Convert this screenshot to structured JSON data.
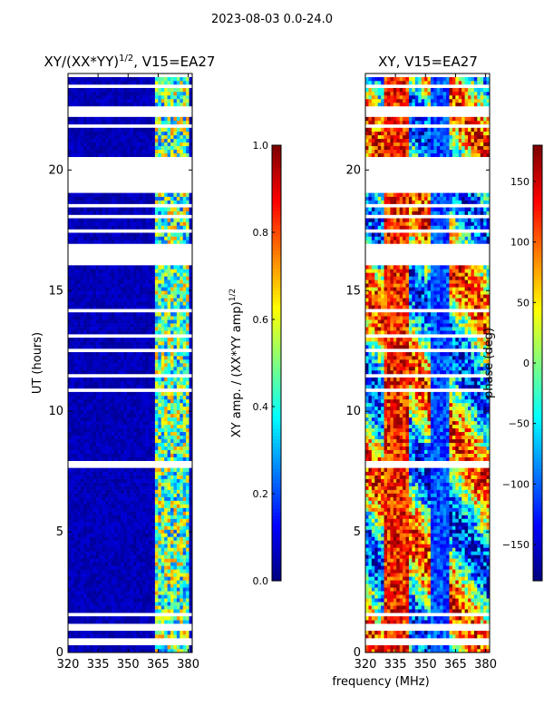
{
  "suptitle": "2023-08-03 0.0-24.0",
  "chart_data": [
    {
      "type": "heatmap",
      "title": "XY/(XX*YY)",
      "title_exp": "1/2",
      "title_suffix": ", V15=EA27",
      "xlabel": "",
      "ylabel": "UT (hours)",
      "xlim": [
        320,
        382
      ],
      "ylim": [
        0,
        24
      ],
      "xticks": [
        "320",
        "335",
        "350",
        "365",
        "380"
      ],
      "yticks": [
        "0",
        "5",
        "10",
        "15",
        "20"
      ],
      "colorbar": {
        "label": "XY amp. / (XX*YY amp)",
        "label_exp": "1/2",
        "range": [
          0.0,
          1.0
        ],
        "ticks": [
          "0.0",
          "0.2",
          "0.4",
          "0.6",
          "0.8",
          "1.0"
        ],
        "colormap": "jet"
      },
      "flagged_ut_ranges": [
        [
          0.95,
          1.25
        ],
        [
          16.0,
          17.0
        ],
        [
          19.1,
          20.6
        ],
        [
          22.2,
          22.7
        ],
        [
          23.4,
          23.5
        ]
      ],
      "signal_band_mhz": [
        363,
        380
      ]
    },
    {
      "type": "heatmap",
      "title": "XY, V15=EA27",
      "xlabel": "frequency (MHz)",
      "ylabel": "",
      "xlim": [
        320,
        382
      ],
      "ylim": [
        0,
        24
      ],
      "xticks": [
        "320",
        "335",
        "350",
        "365",
        "380"
      ],
      "yticks": [
        "0",
        "5",
        "10",
        "15",
        "20"
      ],
      "colorbar": {
        "label": "phase (deg)",
        "range": [
          -180,
          180
        ],
        "ticks": [
          "150",
          "100",
          "50",
          "0",
          "−50",
          "−100",
          "−150"
        ],
        "tick_values": [
          150,
          100,
          50,
          0,
          -50,
          -100,
          -150
        ],
        "colormap": "jet"
      },
      "flagged_ut_ranges": [
        [
          0.95,
          1.25
        ],
        [
          16.0,
          17.0
        ],
        [
          19.1,
          20.6
        ],
        [
          22.2,
          22.7
        ],
        [
          23.4,
          23.5
        ]
      ]
    }
  ]
}
